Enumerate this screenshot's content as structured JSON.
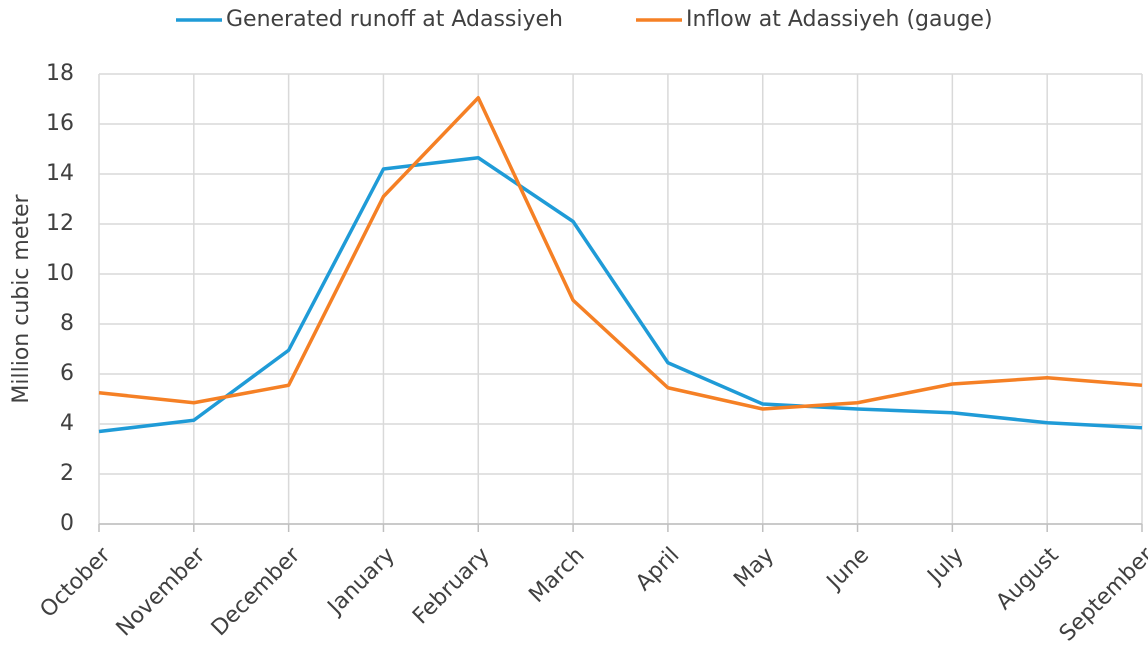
{
  "chart_data": {
    "type": "line",
    "y_label": "Million cubic meter",
    "categories": [
      "October",
      "November",
      "December",
      "January",
      "February",
      "March",
      "April",
      "May",
      "June",
      "July",
      "August",
      "September"
    ],
    "series": [
      {
        "name": "Generated runoff at Adassiyeh",
        "color": "#1f9bd7",
        "values": [
          3.7,
          4.15,
          6.95,
          14.2,
          14.65,
          12.1,
          6.45,
          4.8,
          4.6,
          4.45,
          4.05,
          3.85
        ]
      },
      {
        "name": "Inflow at Adassiyeh (gauge)",
        "color": "#f58025",
        "values": [
          5.25,
          4.85,
          5.55,
          13.1,
          17.05,
          8.95,
          5.45,
          4.6,
          4.85,
          5.6,
          5.85,
          5.55
        ]
      }
    ],
    "ylim": [
      0,
      18
    ],
    "yticks": [
      0,
      2,
      4,
      6,
      8,
      10,
      12,
      14,
      16,
      18
    ],
    "grid": true,
    "legend": "top"
  }
}
